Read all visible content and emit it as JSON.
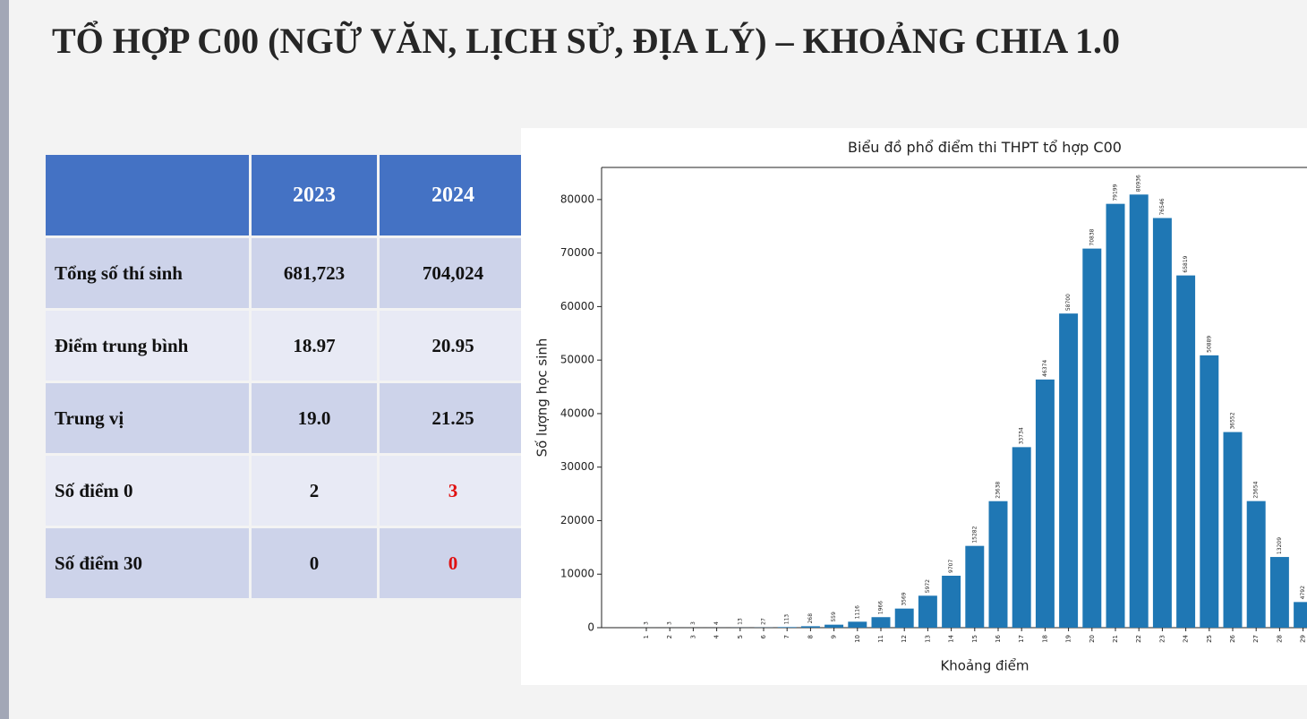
{
  "title": "TỔ HỢP C00 (NGỮ VĂN, LỊCH SỬ, ĐỊA LÝ) – KHOẢNG CHIA 1.0",
  "table": {
    "header": [
      "2023",
      "2024"
    ],
    "rows": [
      [
        "Tổng số thí sinh",
        "681,723",
        "704,024"
      ],
      [
        "Điểm trung bình",
        "18.97",
        "20.95"
      ],
      [
        "Trung vị",
        "19.0",
        "21.25"
      ],
      [
        "Số điểm 0",
        "2",
        "3"
      ],
      [
        "Số điểm 30",
        "0",
        "0"
      ]
    ]
  },
  "chart_data": {
    "type": "bar",
    "title": "Biểu đồ phổ điểm thi THPT tổ hợp C00",
    "x_label": "Khoảng điểm",
    "y_label": "Số lượng học sinh",
    "categories": [
      "1",
      "2",
      "3",
      "4",
      "5",
      "6",
      "7",
      "8",
      "9",
      "10",
      "11",
      "12",
      "13",
      "14",
      "15",
      "16",
      "17",
      "18",
      "19",
      "20",
      "21",
      "22",
      "23",
      "24",
      "25",
      "26",
      "27",
      "28",
      "29"
    ],
    "values": [
      3,
      3,
      3,
      4,
      13,
      27,
      113,
      268,
      559,
      1116,
      1966,
      3569,
      5972,
      9707,
      15282,
      23638,
      33734,
      46374,
      58700,
      70838,
      79199,
      80936,
      76546,
      65819,
      50889,
      36552,
      23654,
      13209,
      4792
    ],
    "color": "#1f77b4",
    "ylim": [
      0,
      86000
    ],
    "yticks": [
      0,
      10000,
      20000,
      30000,
      40000,
      50000,
      60000,
      70000,
      80000
    ]
  }
}
